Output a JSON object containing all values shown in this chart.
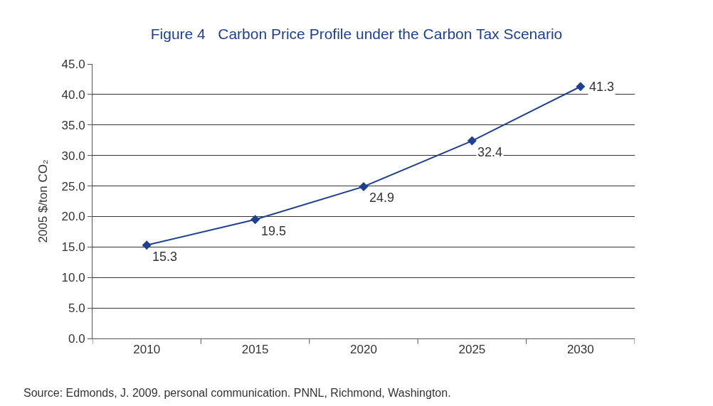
{
  "chart_data": {
    "type": "line",
    "title": "Figure 4   Carbon Price Profile under the Carbon Tax Scenario",
    "ylabel": "2005 $/ton CO₂",
    "categories": [
      "2010",
      "2015",
      "2020",
      "2025",
      "2030"
    ],
    "series": [
      {
        "color": "#1f3f8f",
        "values": [
          15.3,
          19.5,
          24.9,
          32.4,
          41.3
        ]
      }
    ],
    "ylim": [
      0,
      45
    ],
    "yticks": [
      {
        "value": 0,
        "label": "0.0"
      },
      {
        "value": 5,
        "label": "5.0"
      },
      {
        "value": 10,
        "label": "10.0"
      },
      {
        "value": 15,
        "label": "15.0"
      },
      {
        "value": 20,
        "label": "20.0"
      },
      {
        "value": 25,
        "label": "25.0"
      },
      {
        "value": 30,
        "label": "30.0"
      },
      {
        "value": 35,
        "label": "35.0"
      },
      {
        "value": 40,
        "label": "40.0"
      },
      {
        "value": 45,
        "label": "45.0"
      }
    ],
    "grid": "y",
    "marker": "diamond",
    "line_style": "solid",
    "data_labels": true,
    "legend": false,
    "annotations": [
      "Source: Edmonds, J. 2009. personal communication. PNNL, Richmond, Washington."
    ]
  }
}
